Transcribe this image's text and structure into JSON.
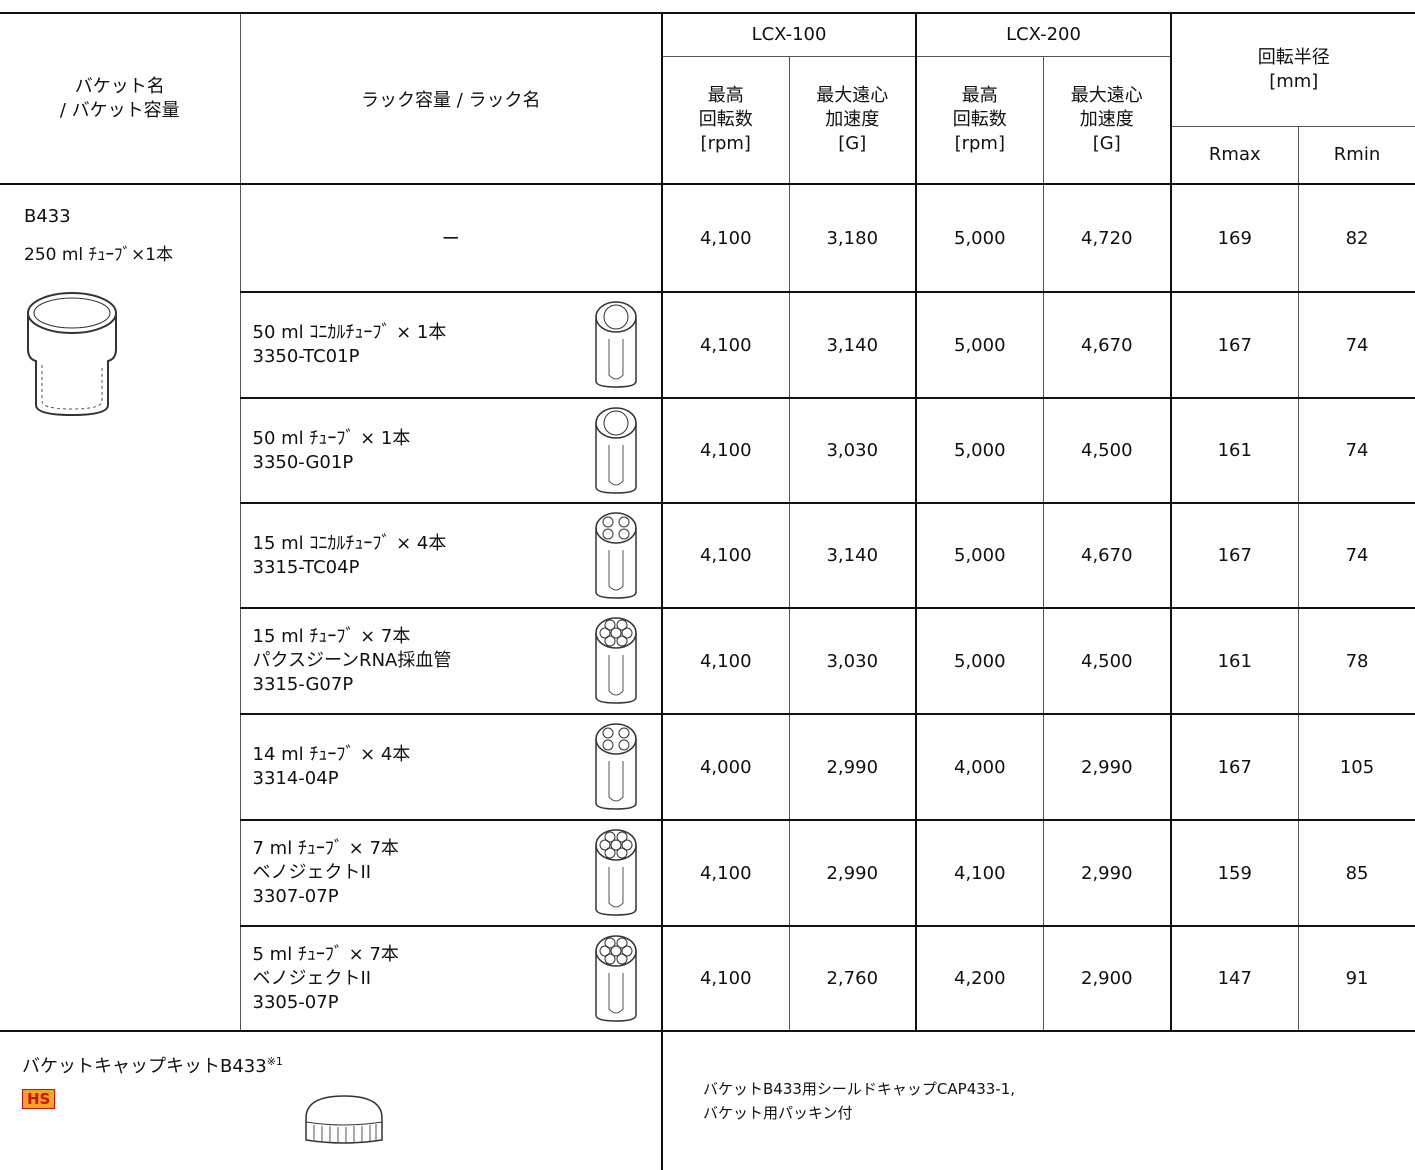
{
  "header": {
    "bucket": [
      "バケット名",
      "/ バケット容量"
    ],
    "rack": "ラック容量 / ラック名",
    "models": [
      "LCX-100",
      "LCX-200"
    ],
    "speed": [
      "最高",
      "回転数",
      "[rpm]"
    ],
    "accel": [
      "最大遠心",
      "加速度",
      "[G]"
    ],
    "radius": [
      "回転半径",
      "[mm]"
    ],
    "rmax": "Rmax",
    "rmin": "Rmin"
  },
  "bucket": {
    "name": "B433",
    "capacity": "250 ml ﾁｭｰﾌﾞ×1本"
  },
  "rows": [
    {
      "rack": [
        "ー"
      ],
      "values": [
        "4,100",
        "3,180",
        "5,000",
        "4,720",
        "169",
        "82"
      ]
    },
    {
      "rack": [
        "50 ml ｺﾆｶﾙﾁｭｰﾌﾞ × 1本",
        "3350-TC01P"
      ],
      "values": [
        "4,100",
        "3,140",
        "5,000",
        "4,670",
        "167",
        "74"
      ]
    },
    {
      "rack": [
        "50 ml ﾁｭｰﾌﾞ × 1本",
        "3350-G01P"
      ],
      "values": [
        "4,100",
        "3,030",
        "5,000",
        "4,500",
        "161",
        "74"
      ]
    },
    {
      "rack": [
        "15 ml ｺﾆｶﾙﾁｭｰﾌﾞ × 4本",
        "3315-TC04P"
      ],
      "values": [
        "4,100",
        "3,140",
        "5,000",
        "4,670",
        "167",
        "74"
      ]
    },
    {
      "rack": [
        "15 ml ﾁｭｰﾌﾞ × 7本",
        "パクスジーンRNA採血管",
        "3315-G07P"
      ],
      "values": [
        "4,100",
        "3,030",
        "5,000",
        "4,500",
        "161",
        "78"
      ]
    },
    {
      "rack": [
        "14 ml ﾁｭｰﾌﾞ × 4本",
        "3314-04P"
      ],
      "values": [
        "4,000",
        "2,990",
        "4,000",
        "2,990",
        "167",
        "105"
      ]
    },
    {
      "rack": [
        "7 ml ﾁｭｰﾌﾞ × 7本",
        "ベノジェクトII",
        "3307-07P"
      ],
      "values": [
        "4,100",
        "2,990",
        "4,100",
        "2,990",
        "159",
        "85"
      ]
    },
    {
      "rack": [
        "5 ml ﾁｭｰﾌﾞ × 7本",
        "ベノジェクトII",
        "3305-07P"
      ],
      "values": [
        "4,100",
        "2,760",
        "4,200",
        "2,900",
        "147",
        "91"
      ]
    }
  ],
  "footer": {
    "title": "バケットキャップキットB433",
    "note": "※1",
    "badge": "HS",
    "description": [
      "バケットB433用シールドキャップCAP433-1,",
      "バケット用パッキン付"
    ]
  }
}
